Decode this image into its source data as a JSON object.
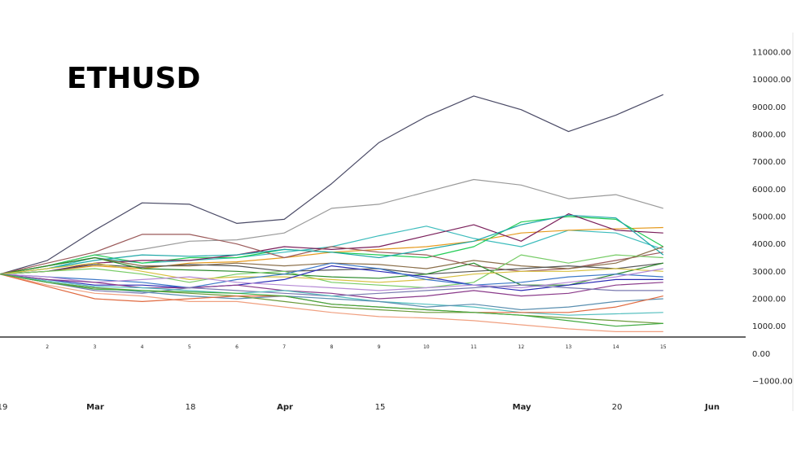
{
  "chart_data": {
    "type": "line",
    "title": "ETHUSD",
    "y_ticks": [
      "11000.00",
      "10000.00",
      "9000.00",
      "8000.00",
      "7000.00",
      "6000.00",
      "5000.00",
      "4000.00",
      "3000.00",
      "2000.00",
      "1000.00",
      "0.00",
      "−1000.00"
    ],
    "ylim": [
      -1000,
      11000
    ],
    "x_step_labels": [
      "2",
      "3",
      "4",
      "5",
      "6",
      "7",
      "8",
      "9",
      "10",
      "11",
      "12",
      "13",
      "14",
      "15"
    ],
    "x_date_labels": [
      {
        "text": "19",
        "bold": false
      },
      {
        "text": "Mar",
        "bold": true
      },
      {
        "text": "18",
        "bold": false
      },
      {
        "text": "Apr",
        "bold": true
      },
      {
        "text": "15",
        "bold": false
      },
      {
        "text": "May",
        "bold": true
      },
      {
        "text": "20",
        "bold": false
      },
      {
        "text": "Jun",
        "bold": true
      }
    ],
    "x": [
      1,
      2,
      3,
      4,
      5,
      6,
      7,
      8,
      9,
      10,
      11,
      12,
      13,
      14,
      15
    ],
    "series": [
      {
        "color": "#4a4a66",
        "values": [
          2900,
          3400,
          4500,
          5500,
          5450,
          4750,
          4900,
          6200,
          7700,
          8650,
          9400,
          8900,
          8100,
          8700,
          9450
        ]
      },
      {
        "color": "#9a9a9a",
        "values": [
          2900,
          3200,
          3600,
          3800,
          4100,
          4150,
          4400,
          5300,
          5450,
          5900,
          6350,
          6150,
          5650,
          5800,
          5300
        ]
      },
      {
        "color": "#3cbcbc",
        "values": [
          2900,
          3100,
          3500,
          3300,
          3400,
          3500,
          3700,
          3900,
          4300,
          4650,
          4200,
          3900,
          4500,
          4400,
          3800
        ]
      },
      {
        "color": "#e59a1e",
        "values": [
          2900,
          3000,
          3200,
          3100,
          3300,
          3350,
          3500,
          3700,
          3800,
          3900,
          4100,
          4400,
          4500,
          4550,
          4600
        ]
      },
      {
        "color": "#22cc55",
        "values": [
          2900,
          3200,
          3600,
          3300,
          3500,
          3500,
          3800,
          3700,
          3600,
          3500,
          3900,
          4800,
          5000,
          4900,
          3900
        ]
      },
      {
        "color": "#7a1e5a",
        "values": [
          2900,
          3000,
          3300,
          3400,
          3400,
          3600,
          3900,
          3800,
          3900,
          4300,
          4700,
          4100,
          5100,
          4500,
          4400
        ]
      },
      {
        "color": "#9b5a5a",
        "values": [
          2900,
          3300,
          3700,
          4350,
          4350,
          4000,
          3500,
          3900,
          3700,
          3600,
          3200,
          3000,
          3100,
          3400,
          3700
        ]
      },
      {
        "color": "#1fa8a8",
        "values": [
          2900,
          3100,
          3400,
          3600,
          3550,
          3600,
          3800,
          3700,
          3500,
          3800,
          4100,
          4700,
          5050,
          4950,
          3600
        ]
      },
      {
        "color": "#8b6f4a",
        "values": [
          2900,
          3200,
          3500,
          3200,
          3200,
          3300,
          3200,
          3300,
          3250,
          3100,
          3400,
          3200,
          3100,
          3300,
          3900
        ]
      },
      {
        "color": "#555555",
        "values": [
          2900,
          3000,
          3250,
          3150,
          3250,
          3200,
          3000,
          3050,
          3100,
          2900,
          3000,
          3100,
          3200,
          3100,
          3300
        ]
      },
      {
        "color": "#2c8a2c",
        "values": [
          2900,
          3200,
          3500,
          3100,
          3050,
          3000,
          2900,
          2800,
          2750,
          2900,
          3300,
          2500,
          2500,
          2900,
          3300
        ]
      },
      {
        "color": "#77cc66",
        "values": [
          2900,
          3000,
          3100,
          2900,
          2600,
          2900,
          3000,
          2600,
          2500,
          2400,
          2600,
          3600,
          3300,
          3600,
          3500
        ]
      },
      {
        "color": "#d8c040",
        "values": [
          2900,
          3100,
          3300,
          3000,
          2700,
          2800,
          2800,
          2700,
          2600,
          2700,
          2900,
          3000,
          3000,
          3100,
          3000
        ]
      },
      {
        "color": "#2b2bb5",
        "values": [
          2900,
          2700,
          2500,
          2500,
          2400,
          2500,
          2700,
          3200,
          3000,
          2800,
          2500,
          2300,
          2500,
          2700,
          2700
        ]
      },
      {
        "color": "#3c78c8",
        "values": [
          2900,
          2800,
          2700,
          2600,
          2400,
          2700,
          2900,
          3300,
          3100,
          2700,
          2500,
          2600,
          2800,
          2900,
          2800
        ]
      },
      {
        "color": "#b58ad5",
        "values": [
          2900,
          2800,
          2600,
          2700,
          2800,
          2600,
          2500,
          2400,
          2300,
          2400,
          2500,
          2400,
          2600,
          2800,
          3100
        ]
      },
      {
        "color": "#8a3a8a",
        "values": [
          2900,
          2700,
          2600,
          2400,
          2400,
          2500,
          2300,
          2200,
          2000,
          2100,
          2300,
          2100,
          2200,
          2500,
          2600
        ]
      },
      {
        "color": "#7a7ab0",
        "values": [
          2900,
          2600,
          2300,
          2200,
          2400,
          2300,
          2200,
          2100,
          2200,
          2300,
          2400,
          2500,
          2400,
          2300,
          2300
        ]
      },
      {
        "color": "#55bfbf",
        "values": [
          2900,
          2650,
          2450,
          2400,
          2300,
          2200,
          2300,
          2100,
          1900,
          1800,
          1700,
          1500,
          1400,
          1450,
          1500
        ]
      },
      {
        "color": "#5a8fb0",
        "values": [
          2900,
          2600,
          2400,
          2250,
          2100,
          2000,
          2100,
          2000,
          1900,
          1700,
          1800,
          1600,
          1700,
          1900,
          2000
        ]
      },
      {
        "color": "#6a9a3a",
        "values": [
          2900,
          2600,
          2400,
          2300,
          2200,
          2100,
          1900,
          1700,
          1600,
          1500,
          1500,
          1400,
          1300,
          1200,
          1100
        ]
      },
      {
        "color": "#f0a080",
        "values": [
          2900,
          2500,
          2200,
          2100,
          1900,
          1900,
          1700,
          1500,
          1350,
          1300,
          1200,
          1050,
          900,
          800,
          800
        ]
      },
      {
        "color": "#e06a40",
        "values": [
          2900,
          2450,
          2000,
          1900,
          2000,
          2100,
          2100,
          1800,
          1700,
          1600,
          1500,
          1500,
          1500,
          1700,
          2100
        ]
      },
      {
        "color": "#40aa40",
        "values": [
          2900,
          2600,
          2350,
          2300,
          2250,
          2200,
          2100,
          1800,
          1700,
          1600,
          1500,
          1400,
          1200,
          1000,
          1100
        ]
      }
    ]
  }
}
